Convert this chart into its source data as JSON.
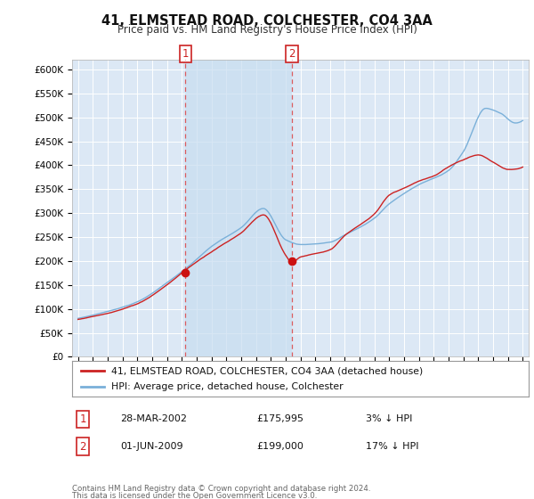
{
  "title": "41, ELMSTEAD ROAD, COLCHESTER, CO4 3AA",
  "subtitle": "Price paid vs. HM Land Registry's House Price Index (HPI)",
  "ylim": [
    0,
    620000
  ],
  "yticks": [
    0,
    50000,
    100000,
    150000,
    200000,
    250000,
    300000,
    350000,
    400000,
    450000,
    500000,
    550000,
    600000
  ],
  "ytick_labels": [
    "£0",
    "£50K",
    "£100K",
    "£150K",
    "£200K",
    "£250K",
    "£300K",
    "£350K",
    "£400K",
    "£450K",
    "£500K",
    "£550K",
    "£600K"
  ],
  "background_color": "#ffffff",
  "plot_bg_color": "#dce8f5",
  "grid_color": "#ffffff",
  "hpi_color": "#7ab0d9",
  "price_color": "#cc2222",
  "vline_color": "#dd4444",
  "marker_color": "#cc1111",
  "shade_color": "#c8ddf0",
  "legend_label_price": "41, ELMSTEAD ROAD, COLCHESTER, CO4 3AA (detached house)",
  "legend_label_hpi": "HPI: Average price, detached house, Colchester",
  "footer_line1": "Contains HM Land Registry data © Crown copyright and database right 2024.",
  "footer_line2": "This data is licensed under the Open Government Licence v3.0.",
  "table_rows": [
    {
      "num": "1",
      "date": "28-MAR-2002",
      "price": "£175,995",
      "pct": "3% ↓ HPI"
    },
    {
      "num": "2",
      "date": "01-JUN-2009",
      "price": "£199,000",
      "pct": "17% ↓ HPI"
    }
  ],
  "t1_year": 2002.25,
  "t1_price": 175995,
  "t2_year": 2009.42,
  "t2_price": 199000
}
